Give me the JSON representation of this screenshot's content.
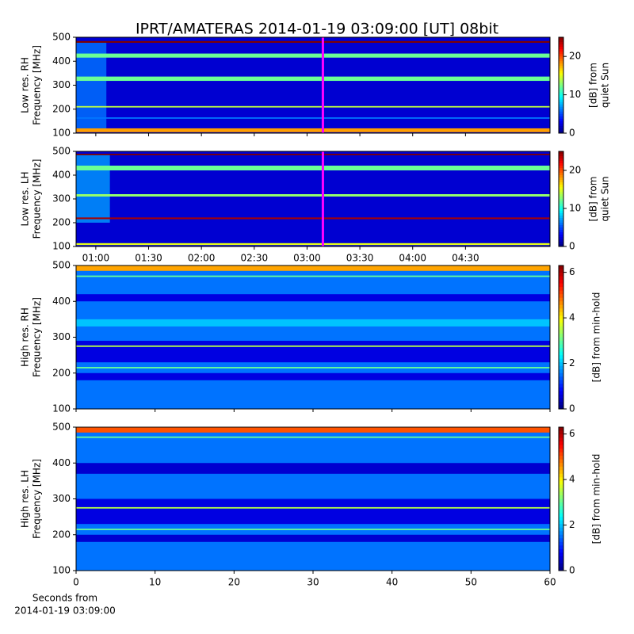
{
  "title": "IPRT/AMATERAS 2014-01-19 03:09:00 [UT]   08bit",
  "chart_data": [
    {
      "type": "heatmap",
      "ylabel": [
        "Low res. RH",
        "Frequency [MHz]"
      ],
      "ylim": [
        100,
        500
      ],
      "yticks": [
        100,
        200,
        300,
        400,
        500
      ],
      "xlim": [
        48.8,
        318
      ],
      "xticks": [
        {
          "value": 60,
          "label": "01:00"
        },
        {
          "value": 90,
          "label": "01:30"
        },
        {
          "value": 120,
          "label": "02:00"
        },
        {
          "value": 150,
          "label": "02:30"
        },
        {
          "value": 180,
          "label": "03:00"
        },
        {
          "value": 210,
          "label": "03:30"
        },
        {
          "value": 240,
          "label": "04:00"
        },
        {
          "value": 270,
          "label": "04:30"
        }
      ],
      "xticklabels": false,
      "clim": [
        0,
        25
      ],
      "cticks": [
        0,
        10,
        20
      ],
      "clabel": [
        "[dB] from",
        "quiet Sun"
      ],
      "background": 2,
      "regions": [
        {
          "x": [
            48.8,
            66
          ],
          "y": [
            120,
            480
          ],
          "value": 6
        }
      ],
      "bands": [
        {
          "range": [
            477,
            484
          ],
          "value": 25
        },
        {
          "range": [
            415,
            432
          ],
          "value": 12
        },
        {
          "range": [
            318,
            336
          ],
          "value": 12
        },
        {
          "range": [
            207,
            213
          ],
          "value": 14
        },
        {
          "range": [
            160,
            166
          ],
          "value": 6
        },
        {
          "range": [
            104,
            120
          ],
          "value": 18
        }
      ],
      "marker": {
        "value": 189,
        "color": "#ff00ff"
      }
    },
    {
      "type": "heatmap",
      "ylabel": [
        "Low res. LH",
        "Frequency [MHz]"
      ],
      "ylim": [
        100,
        500
      ],
      "yticks": [
        100,
        200,
        300,
        400,
        500
      ],
      "xlim": [
        48.8,
        318
      ],
      "xticks": [
        {
          "value": 60,
          "label": "01:00"
        },
        {
          "value": 90,
          "label": "01:30"
        },
        {
          "value": 120,
          "label": "02:00"
        },
        {
          "value": 150,
          "label": "02:30"
        },
        {
          "value": 180,
          "label": "03:00"
        },
        {
          "value": 210,
          "label": "03:30"
        },
        {
          "value": 240,
          "label": "04:00"
        },
        {
          "value": 270,
          "label": "04:30"
        }
      ],
      "xticklabels": true,
      "clim": [
        0,
        25
      ],
      "cticks": [
        0,
        10,
        20
      ],
      "clabel": [
        "[dB] from",
        "quiet Sun"
      ],
      "background": 2,
      "regions": [
        {
          "x": [
            48.8,
            68
          ],
          "y": [
            200,
            490
          ],
          "value": 7
        }
      ],
      "bands": [
        {
          "range": [
            484,
            490
          ],
          "value": 25
        },
        {
          "range": [
            420,
            440
          ],
          "value": 12
        },
        {
          "range": [
            310,
            320
          ],
          "value": 13
        },
        {
          "range": [
            215,
            222
          ],
          "value": 24
        },
        {
          "range": [
            106,
            114
          ],
          "value": 15
        }
      ],
      "marker": {
        "value": 189,
        "color": "#ff00ff"
      }
    },
    {
      "type": "heatmap",
      "ylabel": [
        "High res. RH",
        "Frequency [MHz]"
      ],
      "ylim": [
        100,
        500
      ],
      "yticks": [
        100,
        200,
        300,
        400,
        500
      ],
      "xlim": [
        0,
        60
      ],
      "xticks": [
        0,
        10,
        20,
        30,
        40,
        50,
        60
      ],
      "xticklabels": false,
      "clim": [
        0,
        6.3
      ],
      "cticks": [
        0,
        2,
        4,
        6
      ],
      "clabel": [
        "[dB] from min-hold"
      ],
      "background": 1.5,
      "regions": [],
      "bands": [
        {
          "range": [
            485,
            500
          ],
          "value": 4.5
        },
        {
          "range": [
            468,
            472
          ],
          "value": 3
        },
        {
          "range": [
            400,
            420
          ],
          "value": 0.6
        },
        {
          "range": [
            330,
            350
          ],
          "value": 2
        },
        {
          "range": [
            230,
            290
          ],
          "value": 0.6
        },
        {
          "range": [
            273,
            277
          ],
          "value": 3.5
        },
        {
          "range": [
            180,
            200
          ],
          "value": 0.6
        },
        {
          "range": [
            213,
            217
          ],
          "value": 3
        }
      ]
    },
    {
      "type": "heatmap",
      "ylabel": [
        "High res. LH",
        "Frequency [MHz]"
      ],
      "ylim": [
        100,
        500
      ],
      "yticks": [
        100,
        200,
        300,
        400,
        500
      ],
      "xlim": [
        0,
        60
      ],
      "xticks": [
        0,
        10,
        20,
        30,
        40,
        50,
        60
      ],
      "xticklabels": true,
      "xlabel": [
        "Seconds from",
        "2014-01-19 03:09:00"
      ],
      "clim": [
        0,
        6.3
      ],
      "cticks": [
        0,
        2,
        4,
        6
      ],
      "clabel": [
        "[dB] from min-hold"
      ],
      "background": 1.5,
      "regions": [],
      "bands": [
        {
          "range": [
            485,
            500
          ],
          "value": 5
        },
        {
          "range": [
            470,
            474
          ],
          "value": 3
        },
        {
          "range": [
            370,
            400
          ],
          "value": 0.5
        },
        {
          "range": [
            230,
            300
          ],
          "value": 0.6
        },
        {
          "range": [
            273,
            277
          ],
          "value": 3.5
        },
        {
          "range": [
            180,
            200
          ],
          "value": 0.5
        },
        {
          "range": [
            213,
            217
          ],
          "value": 3
        }
      ]
    }
  ]
}
